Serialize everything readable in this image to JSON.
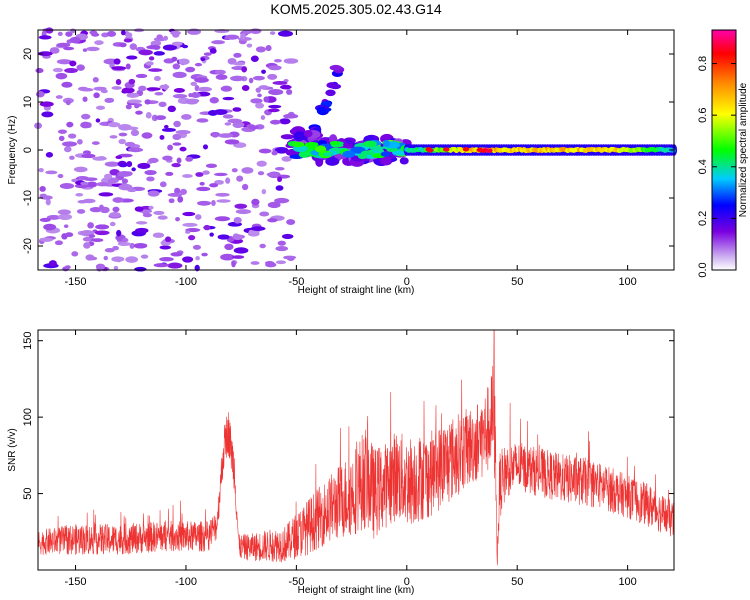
{
  "figure_title": "KOM5.2025.305.02.43.G14",
  "chart_data": [
    {
      "type": "heatmap",
      "xlabel": "Height of straight line (km)",
      "ylabel": "Frequency (Hz)",
      "xlim": [
        -167,
        121
      ],
      "ylim": [
        -25,
        25
      ],
      "x_ticks": [
        -150,
        -100,
        -50,
        0,
        50,
        100
      ],
      "y_ticks": [
        -20,
        -10,
        0,
        10,
        20
      ],
      "grid": false,
      "colorbar": {
        "label": "Normalized spectral amplitude",
        "range": [
          0.0,
          0.93
        ],
        "ticks": [
          0.0,
          0.2,
          0.4,
          0.6,
          0.8
        ],
        "colors": [
          "#ffffff",
          "#c9a8f0",
          "#7a00e0",
          "#0000ff",
          "#00ccff",
          "#00ff00",
          "#ffff00",
          "#ff8800",
          "#ff0000",
          "#ff00aa"
        ]
      },
      "structures": [
        {
          "name": "diffuse background noise",
          "x_range": [
            -167,
            -52
          ],
          "y_range": [
            -25,
            25
          ],
          "amplitude": 0.1
        },
        {
          "name": "diagonal feature",
          "x_range": [
            -45,
            -30
          ],
          "y_range": [
            1,
            17
          ],
          "amplitude": 0.3
        },
        {
          "name": "developing trace",
          "x_range": [
            -52,
            0
          ],
          "y_range": [
            -3,
            4
          ],
          "amplitude": 0.45
        },
        {
          "name": "stable trace near 0 Hz",
          "x_range": [
            0,
            121
          ],
          "y_range": [
            -1,
            1
          ],
          "amplitude": 0.65
        }
      ]
    },
    {
      "type": "line",
      "xlabel": "Height of straight line (km)",
      "ylabel": "SNR (v/v)",
      "xlim": [
        -167,
        121
      ],
      "ylim": [
        0,
        157
      ],
      "x_ticks": [
        -150,
        -100,
        -50,
        0,
        50,
        100
      ],
      "y_ticks": [
        50,
        100,
        150
      ],
      "color": "#ee3333",
      "grid": false,
      "series": [
        {
          "name": "SNR",
          "x": [
            -167,
            -150,
            -130,
            -110,
            -90,
            -86,
            -83,
            -81,
            -78,
            -76,
            -70,
            -55,
            -45,
            -35,
            -25,
            -20,
            -18,
            -15,
            -10,
            -5,
            0,
            10,
            20,
            25,
            30,
            35,
            38,
            39,
            40,
            41,
            42,
            45,
            50,
            60,
            70,
            80,
            90,
            100,
            110,
            121
          ],
          "center": [
            18,
            20,
            20,
            22,
            22,
            30,
            78,
            92,
            65,
            15,
            15,
            17,
            28,
            40,
            50,
            58,
            62,
            50,
            55,
            62,
            58,
            62,
            72,
            78,
            82,
            88,
            95,
            100,
            85,
            8,
            55,
            65,
            68,
            64,
            60,
            58,
            54,
            48,
            42,
            32
          ],
          "spread": [
            8,
            10,
            10,
            10,
            10,
            10,
            14,
            15,
            14,
            8,
            9,
            12,
            18,
            22,
            28,
            32,
            35,
            30,
            28,
            30,
            30,
            28,
            28,
            26,
            26,
            28,
            30,
            40,
            30,
            8,
            22,
            18,
            16,
            16,
            16,
            16,
            15,
            14,
            14,
            12
          ],
          "peak_value": 157,
          "peak_x": 39.5
        }
      ]
    }
  ]
}
